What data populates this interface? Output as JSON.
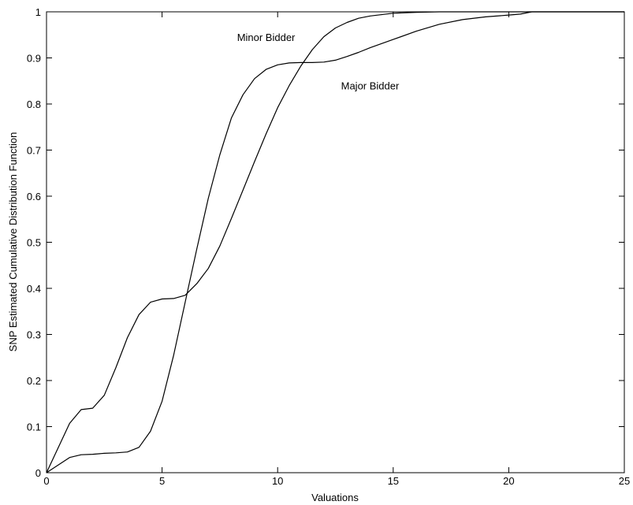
{
  "chart_data": {
    "type": "line",
    "title": "",
    "xlabel": "Valuations",
    "ylabel": "SNP Estimated Cumulative Distribution Function",
    "xlim": [
      0,
      25
    ],
    "ylim": [
      0,
      1
    ],
    "xticks": [
      0,
      5,
      10,
      15,
      20,
      25
    ],
    "xtick_labels": [
      "0",
      "5",
      "10",
      "15",
      "20",
      "25"
    ],
    "yticks": [
      0,
      0.1,
      0.2,
      0.3,
      0.4,
      0.5,
      0.6,
      0.7,
      0.8,
      0.9,
      1
    ],
    "ytick_labels": [
      "0",
      "0.1",
      "0.2",
      "0.3",
      "0.4",
      "0.5",
      "0.6",
      "0.7",
      "0.8",
      "0.9",
      "1"
    ],
    "grid": false,
    "line_color": "#000000",
    "annotations": [
      {
        "text": "Minor Bidder",
        "x": 9.5,
        "y": 0.945
      },
      {
        "text": "Major Bidder",
        "x": 14,
        "y": 0.84
      }
    ],
    "series": [
      {
        "x": [
          0,
          1,
          1.5,
          2,
          2.5,
          3,
          3.5,
          4,
          4.5,
          5,
          5.5,
          6,
          6.5,
          7,
          7.5,
          8,
          8.5,
          9,
          9.5,
          10,
          10.5,
          11,
          11.5,
          12,
          12.5,
          13,
          13.5,
          14,
          15,
          16,
          17,
          18,
          19,
          20,
          20.5,
          21,
          22,
          25
        ],
        "y": [
          0,
          0.033,
          0.039,
          0.04,
          0.042,
          0.043,
          0.045,
          0.055,
          0.09,
          0.155,
          0.255,
          0.37,
          0.485,
          0.595,
          0.69,
          0.77,
          0.82,
          0.855,
          0.875,
          0.885,
          0.889,
          0.89,
          0.89,
          0.891,
          0.895,
          0.903,
          0.912,
          0.922,
          0.94,
          0.958,
          0.973,
          0.983,
          0.989,
          0.993,
          0.995,
          1,
          1,
          1
        ]
      },
      {
        "x": [
          0,
          1,
          1.5,
          2,
          2.5,
          3,
          3.5,
          4,
          4.5,
          5,
          5.5,
          6,
          6.5,
          7,
          7.5,
          8,
          8.5,
          9,
          9.5,
          10,
          10.5,
          11,
          11.5,
          12,
          12.5,
          13,
          13.5,
          14,
          15,
          16,
          17,
          18,
          20,
          25
        ],
        "y": [
          0,
          0.107,
          0.137,
          0.14,
          0.168,
          0.228,
          0.293,
          0.343,
          0.37,
          0.377,
          0.378,
          0.385,
          0.41,
          0.443,
          0.492,
          0.552,
          0.613,
          0.675,
          0.735,
          0.792,
          0.84,
          0.882,
          0.918,
          0.946,
          0.965,
          0.977,
          0.986,
          0.991,
          0.997,
          0.999,
          1,
          1,
          1,
          1
        ]
      }
    ]
  }
}
